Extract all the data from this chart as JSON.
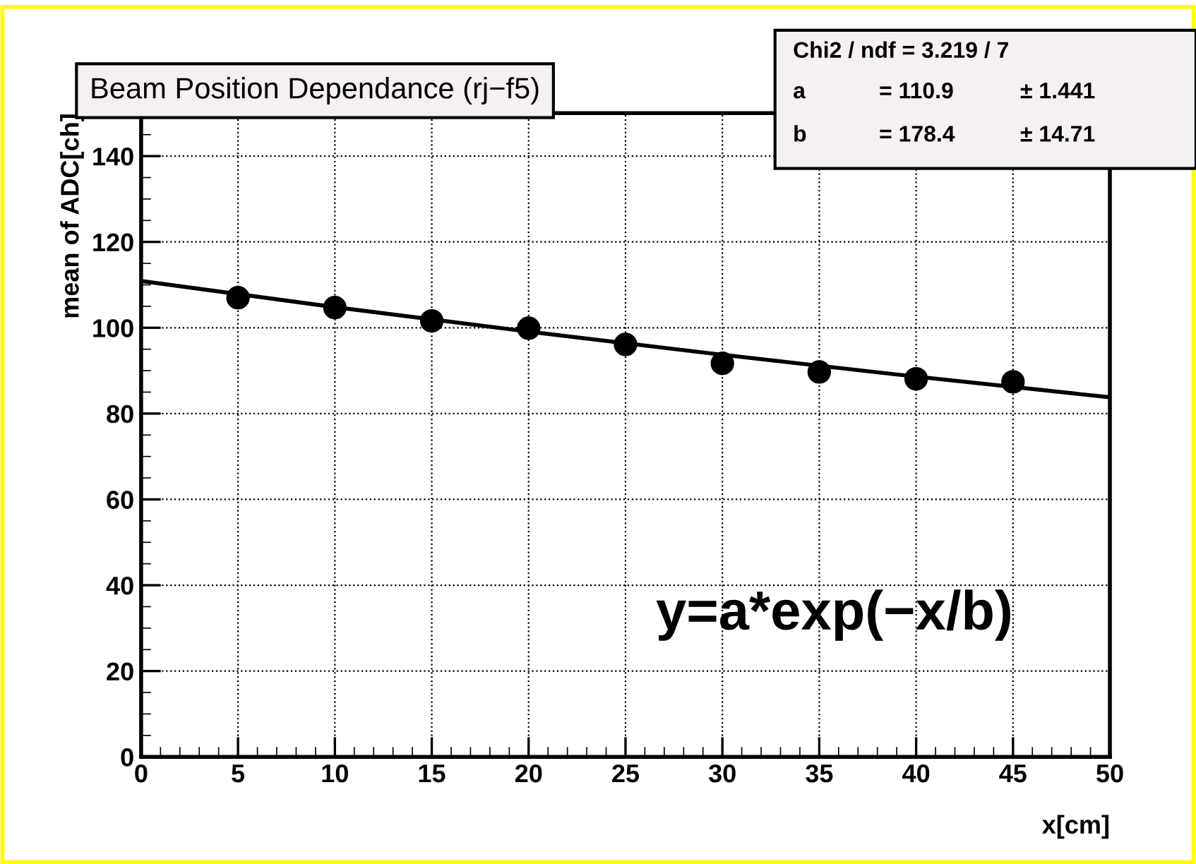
{
  "chart_data": {
    "type": "scatter",
    "title": "Beam Position Dependance (rj−f5)",
    "xlabel": "x[cm]",
    "ylabel": "mean of ADC[ch]",
    "xlim": [
      0,
      50
    ],
    "xticks": [
      0,
      5,
      10,
      15,
      20,
      25,
      30,
      35,
      40,
      45,
      50
    ],
    "ylim": [
      0,
      150
    ],
    "yticks": [
      0,
      20,
      40,
      60,
      80,
      100,
      120,
      140
    ],
    "grid": true,
    "marker": "circle",
    "series": [
      {
        "color": "#000000",
        "x": [
          5,
          10,
          15,
          20,
          25,
          30,
          35,
          40,
          45
        ],
        "values": [
          107.0,
          104.7,
          101.6,
          99.9,
          96.1,
          91.7,
          89.7,
          88.1,
          87.4
        ]
      },
      {
        "type": "line",
        "color": "#000000",
        "line_style": "solid",
        "marker": "none",
        "x": [
          0,
          10,
          20,
          30,
          40,
          50
        ],
        "values": [
          110.9,
          104.8,
          99.1,
          93.7,
          88.6,
          83.8
        ]
      }
    ],
    "annotations": [
      "Chi2 / ndf = 3.219 / 7",
      "a",
      "= 110.9",
      "± 1.441",
      "b",
      "= 178.4",
      "± 14.71",
      "y=a*exp(−x/b)"
    ]
  }
}
